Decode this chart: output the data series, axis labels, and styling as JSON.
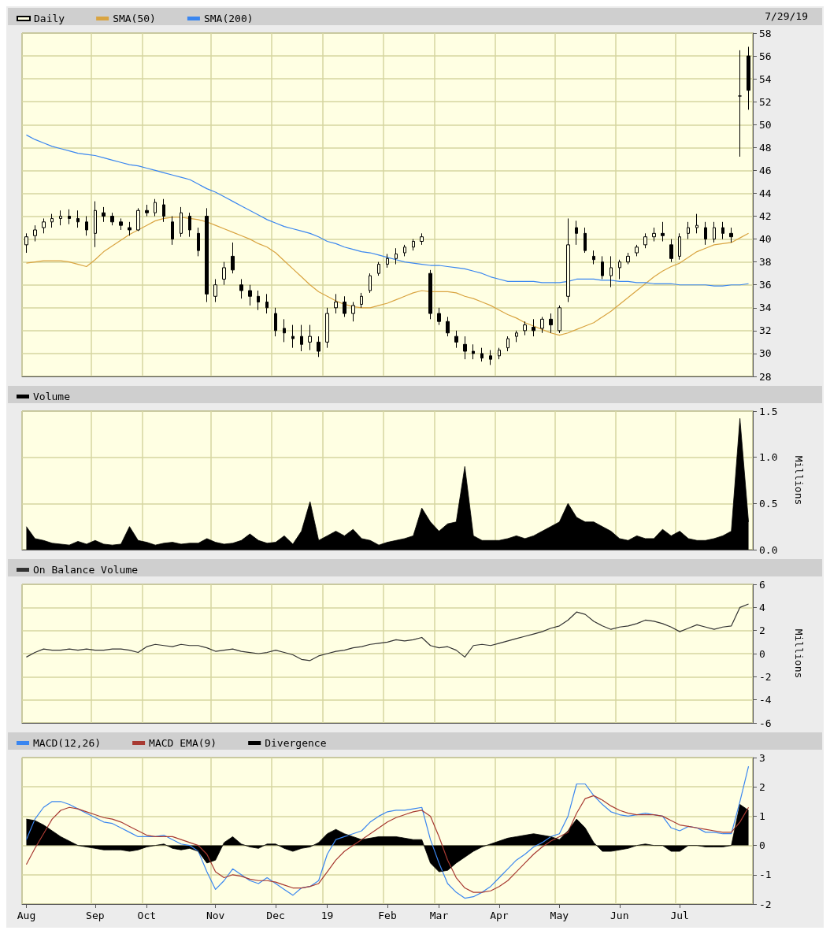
{
  "chart_data": [
    {
      "type": "candlestick",
      "legend": "top left",
      "grid": true,
      "tick_labels": "y",
      "annotations": [
        "7/29/19"
      ],
      "ylim": [
        28,
        58
      ],
      "yticks": [
        28,
        30,
        32,
        34,
        36,
        38,
        40,
        42,
        44,
        46,
        48,
        50,
        52,
        54,
        56,
        58
      ],
      "categories": [
        null,
        null,
        null,
        null,
        null,
        null,
        null,
        null,
        null,
        null,
        null,
        null,
        null,
        null,
        null,
        null,
        null,
        null,
        null,
        null,
        null,
        null,
        null,
        null,
        null,
        null,
        null,
        null,
        null,
        null,
        null,
        null,
        null,
        null,
        null,
        null,
        null,
        null,
        null,
        null,
        null,
        null,
        null,
        null,
        null,
        null,
        null,
        null,
        null,
        null,
        null,
        null,
        null,
        null,
        null,
        null,
        null,
        null,
        null,
        null,
        null,
        null,
        null,
        null,
        null,
        null,
        null,
        null,
        null,
        null,
        null,
        null,
        null,
        null,
        null,
        null,
        null,
        null,
        null,
        null,
        null,
        null,
        null,
        null,
        null
      ],
      "series": [
        {
          "name": "Daily",
          "color": "#000000",
          "ohlc": [
            [
              39.5,
              40.5,
              38.8,
              40.2
            ],
            [
              40.3,
              41.2,
              39.8,
              40.8
            ],
            [
              41,
              41.8,
              40.5,
              41.5
            ],
            [
              41.5,
              42.2,
              41,
              41.8
            ],
            [
              41.8,
              42.5,
              41.2,
              42
            ],
            [
              42,
              42.6,
              41.3,
              41.8
            ],
            [
              41.8,
              42.5,
              41,
              41.5
            ],
            [
              41.5,
              42,
              40.3,
              40.8
            ],
            [
              40.5,
              43.3,
              39.3,
              42.5
            ],
            [
              42.3,
              42.8,
              41.5,
              42
            ],
            [
              42,
              42.3,
              41.2,
              41.5
            ],
            [
              41.5,
              41.8,
              40.8,
              41.2
            ],
            [
              41,
              41.5,
              40.3,
              40.8
            ],
            [
              40.8,
              42.7,
              40.7,
              42.5
            ],
            [
              42.5,
              43,
              42,
              42.3
            ],
            [
              42.3,
              43.5,
              42,
              43.2
            ],
            [
              43,
              43.5,
              41.5,
              42
            ],
            [
              41.5,
              42,
              39.5,
              40
            ],
            [
              40.5,
              42.8,
              40.2,
              42.3
            ],
            [
              42,
              42.3,
              40.2,
              40.8
            ],
            [
              40.5,
              41,
              38.5,
              39
            ],
            [
              42,
              42.7,
              34.5,
              35.2
            ],
            [
              35,
              36.5,
              34.5,
              36
            ],
            [
              36.5,
              38,
              36,
              37.5
            ],
            [
              38.5,
              39.7,
              37,
              37.3
            ],
            [
              36,
              36.5,
              34.8,
              35.5
            ],
            [
              35.5,
              36,
              34.2,
              35
            ],
            [
              35,
              35.5,
              33.8,
              34.5
            ],
            [
              34.5,
              35.2,
              33.5,
              34
            ],
            [
              33.5,
              34,
              31.5,
              32
            ],
            [
              32.2,
              33,
              31,
              31.8
            ],
            [
              31.5,
              32.5,
              30.5,
              31.3
            ],
            [
              31.5,
              32.5,
              30.2,
              30.8
            ],
            [
              31,
              32.5,
              30.3,
              31.5
            ],
            [
              31,
              31.5,
              29.7,
              30.2
            ],
            [
              31,
              34,
              30.5,
              33.5
            ],
            [
              34,
              35.2,
              33.5,
              34.5
            ],
            [
              34.5,
              35,
              33.2,
              33.5
            ],
            [
              33.5,
              34.5,
              32.8,
              34.2
            ],
            [
              34.3,
              35.3,
              34,
              35
            ],
            [
              35.5,
              37,
              35.3,
              36.8
            ],
            [
              37,
              38,
              36.8,
              37.8
            ],
            [
              37.8,
              38.7,
              37.5,
              38.3
            ],
            [
              38.3,
              39.2,
              37.8,
              38.7
            ],
            [
              38.8,
              39.5,
              38.5,
              39.3
            ],
            [
              39.3,
              40,
              39,
              39.8
            ],
            [
              39.8,
              40.5,
              39.5,
              40.2
            ],
            [
              37,
              37.3,
              33,
              33.5
            ],
            [
              33.5,
              34,
              32.5,
              32.8
            ],
            [
              32.8,
              33.2,
              31.5,
              31.8
            ],
            [
              31.5,
              32,
              30.5,
              31
            ],
            [
              30.8,
              31.5,
              29.5,
              30.2
            ],
            [
              30.2,
              30.8,
              29.5,
              30
            ],
            [
              30,
              30.5,
              29.3,
              29.6
            ],
            [
              29.8,
              30.3,
              29,
              29.5
            ],
            [
              29.8,
              30.5,
              29.5,
              30.3
            ],
            [
              30.5,
              31.5,
              30.2,
              31.3
            ],
            [
              31.5,
              32,
              31,
              31.8
            ],
            [
              32,
              32.8,
              31.6,
              32.5
            ],
            [
              32.3,
              33,
              31.5,
              32
            ],
            [
              32.2,
              33.2,
              31.8,
              33
            ],
            [
              33,
              33.5,
              31.8,
              32.5
            ],
            [
              32,
              34.2,
              31.8,
              34
            ],
            [
              35,
              41.8,
              34.5,
              39.5
            ],
            [
              41,
              41.6,
              39.5,
              40.5
            ],
            [
              40.5,
              41,
              38.8,
              39
            ],
            [
              38.5,
              39,
              37.8,
              38.2
            ],
            [
              38,
              38.5,
              36.5,
              36.8
            ],
            [
              36.8,
              38.5,
              35.8,
              37.5
            ],
            [
              37.5,
              38.2,
              36.5,
              38
            ],
            [
              38,
              38.8,
              37.8,
              38.5
            ],
            [
              38.8,
              39.5,
              38.5,
              39.3
            ],
            [
              39.5,
              40.5,
              39.2,
              40.2
            ],
            [
              40.2,
              41,
              39.8,
              40.5
            ],
            [
              40.5,
              41.5,
              39.8,
              40.3
            ],
            [
              39.5,
              40,
              38,
              38.3
            ],
            [
              38.5,
              40.5,
              38.2,
              40.2
            ],
            [
              40.5,
              41.5,
              40,
              41
            ],
            [
              41,
              42.2,
              40.5,
              41.2
            ],
            [
              41,
              41.5,
              39.5,
              40
            ],
            [
              40,
              41.5,
              39.7,
              41
            ],
            [
              41,
              41.5,
              40,
              40.5
            ],
            [
              40.5,
              41,
              39.7,
              40.2
            ],
            [
              52.5,
              56.5,
              47.2,
              52.5
            ],
            [
              56,
              56.8,
              51.3,
              53
            ]
          ]
        },
        {
          "name": "SMA(50)",
          "type": "line",
          "marker": "none",
          "color": "#d9a441",
          "values": [
            37.9,
            38.0,
            38.1,
            38.1,
            38.1,
            38.0,
            37.8,
            37.6,
            38.2,
            38.9,
            39.4,
            39.9,
            40.4,
            40.8,
            41.2,
            41.6,
            41.8,
            41.9,
            41.9,
            41.8,
            41.7,
            41.5,
            41.2,
            40.9,
            40.6,
            40.3,
            40.0,
            39.6,
            39.3,
            38.8,
            38.1,
            37.4,
            36.7,
            36.0,
            35.4,
            35.0,
            34.6,
            34.3,
            34.1,
            34.0,
            34.0,
            34.2,
            34.4,
            34.7,
            35.0,
            35.3,
            35.5,
            35.4,
            35.4,
            35.4,
            35.3,
            35.0,
            34.8,
            34.5,
            34.2,
            33.8,
            33.4,
            33.1,
            32.7,
            32.4,
            32.1,
            31.8,
            31.6,
            31.8,
            32.1,
            32.4,
            32.7,
            33.2,
            33.7,
            34.3,
            34.9,
            35.5,
            36.1,
            36.7,
            37.2,
            37.6,
            37.9,
            38.4,
            38.9,
            39.2,
            39.5,
            39.6,
            39.7,
            40.1,
            40.5
          ]
        },
        {
          "name": "SMA(200)",
          "type": "line",
          "marker": "none",
          "color": "#3a86f0",
          "values": [
            49.1,
            48.7,
            48.4,
            48.1,
            47.9,
            47.7,
            47.5,
            47.4,
            47.3,
            47.1,
            46.9,
            46.7,
            46.5,
            46.4,
            46.2,
            46.0,
            45.8,
            45.6,
            45.4,
            45.2,
            44.8,
            44.4,
            44.1,
            43.7,
            43.3,
            42.9,
            42.5,
            42.1,
            41.7,
            41.4,
            41.1,
            40.9,
            40.7,
            40.5,
            40.2,
            39.8,
            39.6,
            39.3,
            39.1,
            38.9,
            38.8,
            38.6,
            38.4,
            38.2,
            38.0,
            37.9,
            37.8,
            37.7,
            37.7,
            37.6,
            37.5,
            37.4,
            37.2,
            37.0,
            36.7,
            36.5,
            36.3,
            36.3,
            36.3,
            36.3,
            36.2,
            36.2,
            36.2,
            36.3,
            36.5,
            36.5,
            36.5,
            36.4,
            36.4,
            36.3,
            36.3,
            36.2,
            36.2,
            36.1,
            36.1,
            36.1,
            36.0,
            36.0,
            36.0,
            36.0,
            35.9,
            35.9,
            36.0,
            36.0,
            36.1
          ]
        }
      ]
    },
    {
      "type": "area",
      "legend": "top left",
      "grid": true,
      "tick_labels": "y",
      "ylabel": "Millions",
      "ylim": [
        0,
        1.5
      ],
      "yticks": [
        {
          "value": 0,
          "label": "0.0"
        },
        0.5,
        {
          "value": 1,
          "label": "1.0"
        },
        1.5
      ],
      "categories": [
        null,
        null,
        null,
        null,
        null,
        null,
        null,
        null,
        null,
        null,
        null,
        null,
        null,
        null,
        null,
        null,
        null,
        null,
        null,
        null,
        null,
        null,
        null,
        null,
        null,
        null,
        null,
        null,
        null,
        null,
        null,
        null,
        null,
        null,
        null,
        null,
        null,
        null,
        null,
        null,
        null,
        null,
        null,
        null,
        null,
        null,
        null,
        null,
        null,
        null,
        null,
        null,
        null,
        null,
        null,
        null,
        null,
        null,
        null,
        null,
        null,
        null,
        null,
        null,
        null,
        null,
        null,
        null,
        null,
        null,
        null,
        null,
        null,
        null,
        null,
        null,
        null,
        null,
        null,
        null,
        null,
        null,
        null,
        null,
        null
      ],
      "series": [
        {
          "name": "Volume",
          "color": "#000000",
          "values": [
            0.25,
            0.12,
            0.1,
            0.07,
            0.06,
            0.05,
            0.09,
            0.06,
            0.1,
            0.06,
            0.05,
            0.06,
            0.25,
            0.1,
            0.08,
            0.05,
            0.07,
            0.08,
            0.06,
            0.07,
            0.07,
            0.12,
            0.08,
            0.06,
            0.07,
            0.1,
            0.17,
            0.1,
            0.07,
            0.08,
            0.15,
            0.06,
            0.2,
            0.52,
            0.1,
            0.15,
            0.2,
            0.15,
            0.22,
            0.12,
            0.1,
            0.05,
            0.08,
            0.1,
            0.12,
            0.15,
            0.45,
            0.3,
            0.2,
            0.28,
            0.3,
            0.9,
            0.15,
            0.1,
            0.1,
            0.1,
            0.12,
            0.15,
            0.12,
            0.15,
            0.2,
            0.25,
            0.3,
            0.5,
            0.35,
            0.3,
            0.3,
            0.25,
            0.2,
            0.12,
            0.1,
            0.15,
            0.12,
            0.12,
            0.22,
            0.15,
            0.2,
            0.12,
            0.1,
            0.1,
            0.12,
            0.15,
            0.2,
            1.42,
            0.3
          ]
        }
      ]
    },
    {
      "type": "line",
      "legend": "top left",
      "grid": true,
      "tick_labels": "y",
      "marker": "none",
      "ylabel": "Millions",
      "ylim": [
        -6,
        6
      ],
      "yticks": [
        -6,
        -4,
        -2,
        0,
        2,
        4,
        6
      ],
      "categories": [
        null,
        null,
        null,
        null,
        null,
        null,
        null,
        null,
        null,
        null,
        null,
        null,
        null,
        null,
        null,
        null,
        null,
        null,
        null,
        null,
        null,
        null,
        null,
        null,
        null,
        null,
        null,
        null,
        null,
        null,
        null,
        null,
        null,
        null,
        null,
        null,
        null,
        null,
        null,
        null,
        null,
        null,
        null,
        null,
        null,
        null,
        null,
        null,
        null,
        null,
        null,
        null,
        null,
        null,
        null,
        null,
        null,
        null,
        null,
        null,
        null,
        null,
        null,
        null,
        null,
        null,
        null,
        null,
        null,
        null,
        null,
        null,
        null,
        null,
        null,
        null,
        null,
        null,
        null,
        null,
        null,
        null,
        null,
        null,
        null
      ],
      "series": [
        {
          "name": "On Balance Volume",
          "color": "#333333",
          "values": [
            -0.3,
            0.1,
            0.4,
            0.3,
            0.3,
            0.4,
            0.3,
            0.4,
            0.3,
            0.3,
            0.4,
            0.4,
            0.3,
            0.1,
            0.6,
            0.8,
            0.7,
            0.6,
            0.8,
            0.7,
            0.7,
            0.5,
            0.2,
            0.3,
            0.4,
            0.2,
            0.1,
            0,
            0.1,
            0.3,
            0.1,
            -0.1,
            -0.5,
            -0.6,
            -0.2,
            0,
            0.2,
            0.3,
            0.5,
            0.6,
            0.8,
            0.9,
            1.0,
            1.2,
            1.1,
            1.2,
            1.4,
            0.7,
            0.5,
            0.6,
            0.3,
            -0.3,
            0.7,
            0.8,
            0.7,
            0.9,
            1.1,
            1.3,
            1.5,
            1.7,
            1.9,
            2.2,
            2.4,
            2.9,
            3.6,
            3.4,
            2.8,
            2.4,
            2.1,
            2.3,
            2.4,
            2.6,
            2.9,
            2.8,
            2.6,
            2.3,
            1.9,
            2.2,
            2.5,
            2.3,
            2.1,
            2.3,
            2.4,
            4.0,
            4.3
          ]
        }
      ]
    },
    {
      "type": "line",
      "legend": "top left",
      "grid": true,
      "marker": "none",
      "ylim": [
        -2,
        3
      ],
      "yticks": [
        -2,
        -1,
        0,
        1,
        2,
        3
      ],
      "categories": [
        "Aug",
        null,
        null,
        null,
        null,
        null,
        null,
        null,
        "Sep",
        null,
        null,
        null,
        null,
        null,
        "Oct",
        null,
        null,
        null,
        null,
        null,
        null,
        null,
        "Nov",
        null,
        null,
        null,
        null,
        null,
        null,
        "Dec",
        null,
        null,
        null,
        null,
        null,
        "19",
        null,
        null,
        null,
        null,
        null,
        null,
        "Feb",
        null,
        null,
        null,
        null,
        null,
        "Mar",
        null,
        null,
        null,
        null,
        null,
        null,
        "Apr",
        null,
        null,
        null,
        null,
        null,
        null,
        "May",
        null,
        null,
        null,
        null,
        null,
        null,
        "Jun",
        null,
        null,
        null,
        null,
        null,
        null,
        "Jul",
        null,
        null,
        null,
        null,
        null,
        null,
        null,
        null
      ],
      "series": [
        {
          "name": "MACD(12,26)",
          "color": "#3a86f0",
          "values": [
            0.2,
            0.9,
            1.3,
            1.5,
            1.5,
            1.4,
            1.25,
            1.1,
            0.95,
            0.8,
            0.75,
            0.6,
            0.45,
            0.3,
            0.3,
            0.3,
            0.35,
            0.2,
            0.05,
            0,
            -0.2,
            -0.9,
            -1.5,
            -1.2,
            -0.8,
            -1.0,
            -1.2,
            -1.3,
            -1.1,
            -1.3,
            -1.5,
            -1.7,
            -1.45,
            -1.4,
            -1.2,
            -0.3,
            0.2,
            0.3,
            0.4,
            0.5,
            0.8,
            1.0,
            1.15,
            1.2,
            1.2,
            1.25,
            1.3,
            0.2,
            -0.6,
            -1.3,
            -1.6,
            -1.8,
            -1.75,
            -1.6,
            -1.4,
            -1.1,
            -0.8,
            -0.5,
            -0.3,
            -0.05,
            0.1,
            0.3,
            0.4,
            1.0,
            2.1,
            2.1,
            1.7,
            1.4,
            1.15,
            1.05,
            1.0,
            1.05,
            1.1,
            1.05,
            1.0,
            0.6,
            0.5,
            0.65,
            0.6,
            0.45,
            0.45,
            0.4,
            0.4,
            1.5,
            2.7
          ]
        },
        {
          "name": "MACD EMA(9)",
          "color": "#a83a32",
          "values": [
            -0.65,
            -0.1,
            0.4,
            0.9,
            1.2,
            1.3,
            1.25,
            1.15,
            1.05,
            0.95,
            0.9,
            0.8,
            0.65,
            0.5,
            0.35,
            0.3,
            0.3,
            0.3,
            0.2,
            0.1,
            0,
            -0.3,
            -0.9,
            -1.1,
            -1.0,
            -1.05,
            -1.15,
            -1.2,
            -1.2,
            -1.25,
            -1.35,
            -1.45,
            -1.45,
            -1.4,
            -1.3,
            -0.9,
            -0.5,
            -0.2,
            0,
            0.2,
            0.4,
            0.6,
            0.8,
            0.95,
            1.05,
            1.15,
            1.2,
            1.0,
            0.3,
            -0.5,
            -1.1,
            -1.45,
            -1.6,
            -1.6,
            -1.55,
            -1.4,
            -1.2,
            -0.9,
            -0.6,
            -0.3,
            -0.05,
            0.15,
            0.3,
            0.45,
            1.1,
            1.6,
            1.7,
            1.55,
            1.35,
            1.2,
            1.1,
            1.05,
            1.05,
            1.05,
            1.0,
            0.85,
            0.7,
            0.65,
            0.6,
            0.55,
            0.5,
            0.45,
            0.45,
            0.8,
            1.3
          ]
        },
        {
          "name": "Divergence",
          "type": "area",
          "color": "#000000",
          "values": [
            0.9,
            0.85,
            0.7,
            0.5,
            0.3,
            0.15,
            0,
            -0.05,
            -0.1,
            -0.15,
            -0.15,
            -0.15,
            -0.2,
            -0.15,
            -0.05,
            0,
            0.05,
            -0.1,
            -0.15,
            -0.1,
            -0.2,
            -0.6,
            -0.5,
            0.1,
            0.3,
            0.05,
            -0.05,
            -0.1,
            0.05,
            0.05,
            -0.1,
            -0.2,
            -0.1,
            -0.05,
            0.1,
            0.4,
            0.55,
            0.4,
            0.3,
            0.2,
            0.25,
            0.3,
            0.3,
            0.3,
            0.25,
            0.2,
            0.2,
            -0.6,
            -0.9,
            -0.85,
            -0.6,
            -0.4,
            -0.2,
            -0.05,
            0.05,
            0.15,
            0.25,
            0.3,
            0.35,
            0.4,
            0.35,
            0.3,
            0.2,
            0.5,
            0.9,
            0.6,
            0.1,
            -0.2,
            -0.2,
            -0.15,
            -0.1,
            0,
            0.05,
            0,
            0,
            -0.2,
            -0.2,
            0,
            0,
            -0.05,
            -0.05,
            -0.05,
            0,
            1.4,
            1.2
          ]
        }
      ]
    }
  ]
}
